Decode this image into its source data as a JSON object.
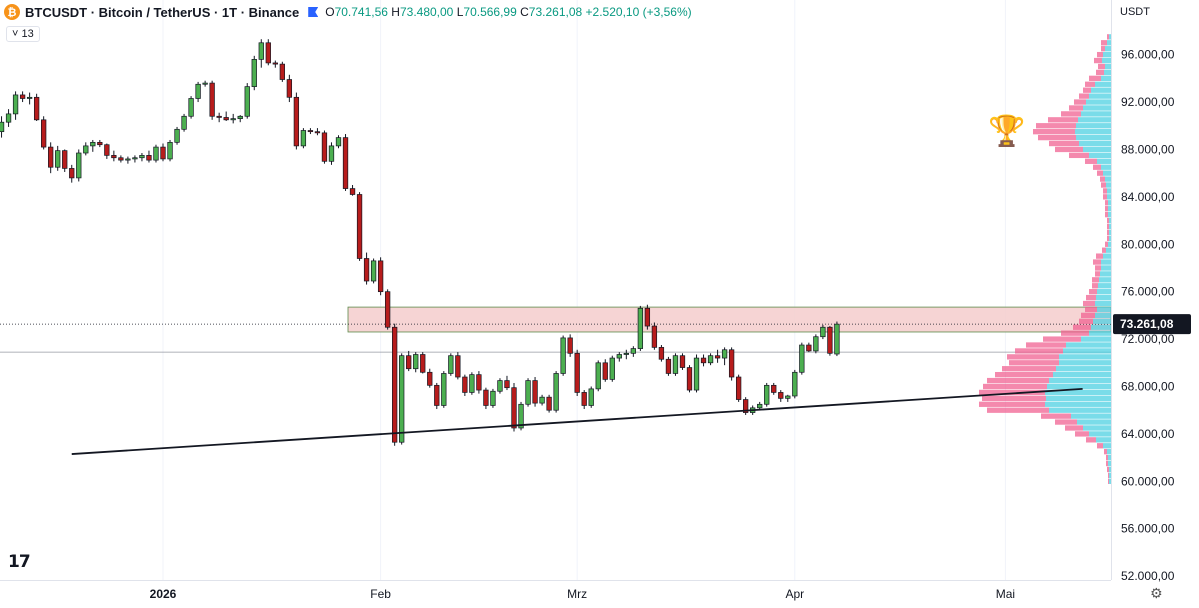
{
  "header": {
    "symbol_text": "BTCUSDT · Bitcoin / TetherUS · 1T · Binance",
    "coin_glyph": "₿",
    "open_label": "O",
    "open": "70.741,56",
    "high_label": "H",
    "high": "73.480,00",
    "low_label": "L",
    "low": "70.566,99",
    "close_label": "C",
    "close": "73.261,08",
    "change": "+2.520,10 (+3,56%)"
  },
  "indicator_toggle": "˅ 13",
  "currency": "USDT",
  "logo_text": "17",
  "settings_glyph": "⚙",
  "trophy_glyph": "🏆",
  "colors": {
    "up": "#26a69a",
    "down": "#ef5350",
    "candle_up": "#4caf50",
    "candle_down": "#b71c1c",
    "zone": "#f4cccc",
    "vp_up": "#4dd0e1",
    "vp_down": "#f06292"
  },
  "chart_data": {
    "type": "candlestick",
    "x_tick_labels": [
      "2026",
      "Feb",
      "Mrz",
      "Apr",
      "Mai"
    ],
    "x_tick_days": [
      0,
      31,
      59,
      90,
      120
    ],
    "y_tick_labels": [
      "96.000,00",
      "92.000,00",
      "88.000,00",
      "84.000,00",
      "80.000,00",
      "76.000,00",
      "72.000,00",
      "68.000,00",
      "64.000,00",
      "60.000,00",
      "56.000,00",
      "52.000,00"
    ],
    "y_tick_values": [
      96000,
      92000,
      88000,
      84000,
      80000,
      76000,
      72000,
      68000,
      64000,
      60000,
      56000,
      52000
    ],
    "ylim": [
      51000,
      98500
    ],
    "last_price_label": "73.261,08",
    "last_price": 73261,
    "candles": [
      [
        89500,
        90800,
        89000,
        90300
      ],
      [
        90300,
        91400,
        89900,
        91000
      ],
      [
        91000,
        92900,
        90500,
        92600
      ],
      [
        92600,
        92900,
        92000,
        92300
      ],
      [
        92300,
        92800,
        91800,
        92400
      ],
      [
        92400,
        92700,
        90400,
        90500
      ],
      [
        90500,
        90800,
        88000,
        88200
      ],
      [
        88200,
        88600,
        86000,
        86500
      ],
      [
        86500,
        88300,
        86200,
        87900
      ],
      [
        87900,
        88000,
        86100,
        86400
      ],
      [
        86400,
        86700,
        85200,
        85600
      ],
      [
        85600,
        88000,
        85300,
        87700
      ],
      [
        87700,
        88600,
        87500,
        88300
      ],
      [
        88300,
        88800,
        87800,
        88600
      ],
      [
        88600,
        88800,
        88200,
        88400
      ],
      [
        88400,
        88500,
        87200,
        87500
      ],
      [
        87500,
        87900,
        87000,
        87300
      ],
      [
        87300,
        87500,
        86900,
        87100
      ],
      [
        87100,
        87400,
        86800,
        87200
      ],
      [
        87200,
        87500,
        86900,
        87300
      ],
      [
        87300,
        87700,
        87000,
        87500
      ],
      [
        87500,
        87900,
        86900,
        87100
      ],
      [
        87100,
        88400,
        86900,
        88200
      ],
      [
        88200,
        88500,
        87000,
        87200
      ],
      [
        87200,
        88800,
        87000,
        88600
      ],
      [
        88600,
        89900,
        88400,
        89700
      ],
      [
        89700,
        91000,
        89500,
        90800
      ],
      [
        90800,
        92500,
        90600,
        92300
      ],
      [
        92300,
        93700,
        92000,
        93500
      ],
      [
        93500,
        93800,
        93300,
        93600
      ],
      [
        93600,
        93800,
        90500,
        90800
      ],
      [
        90800,
        91100,
        90300,
        90700
      ],
      [
        90700,
        91200,
        90400,
        90500
      ],
      [
        90500,
        91000,
        90200,
        90600
      ],
      [
        90600,
        90900,
        90300,
        90800
      ],
      [
        90800,
        93600,
        90600,
        93300
      ],
      [
        93300,
        95900,
        93000,
        95600
      ],
      [
        95600,
        97300,
        94900,
        97000
      ],
      [
        97000,
        97300,
        95100,
        95300
      ],
      [
        95300,
        95500,
        94900,
        95200
      ],
      [
        95200,
        95400,
        93700,
        93900
      ],
      [
        93900,
        94300,
        92000,
        92400
      ],
      [
        92400,
        92800,
        88000,
        88300
      ],
      [
        88300,
        89800,
        88100,
        89600
      ],
      [
        89600,
        89800,
        89300,
        89500
      ],
      [
        89500,
        89800,
        89200,
        89400
      ],
      [
        89400,
        89600,
        86800,
        87000
      ],
      [
        87000,
        88600,
        86700,
        88300
      ],
      [
        88300,
        89200,
        88100,
        89000
      ],
      [
        89000,
        89300,
        84500,
        84700
      ],
      [
        84700,
        85000,
        84100,
        84200
      ],
      [
        84200,
        84400,
        78600,
        78800
      ],
      [
        78800,
        79300,
        76600,
        76900
      ],
      [
        76900,
        78800,
        76700,
        78600
      ],
      [
        78600,
        78900,
        75700,
        76000
      ],
      [
        76000,
        76200,
        72800,
        73000
      ],
      [
        73000,
        73300,
        63000,
        63300
      ],
      [
        63300,
        70800,
        63100,
        70600
      ],
      [
        70600,
        71000,
        69300,
        69500
      ],
      [
        69500,
        70900,
        69200,
        70700
      ],
      [
        70700,
        70900,
        69100,
        69200
      ],
      [
        69200,
        69500,
        67900,
        68100
      ],
      [
        68100,
        68300,
        66100,
        66400
      ],
      [
        66400,
        69300,
        66200,
        69100
      ],
      [
        69100,
        70800,
        68900,
        70600
      ],
      [
        70600,
        70900,
        68600,
        68800
      ],
      [
        68800,
        69000,
        67200,
        67500
      ],
      [
        67500,
        69200,
        67300,
        69000
      ],
      [
        69000,
        69300,
        67400,
        67700
      ],
      [
        67700,
        67900,
        66100,
        66400
      ],
      [
        66400,
        67800,
        66200,
        67600
      ],
      [
        67600,
        68700,
        67400,
        68500
      ],
      [
        68500,
        68900,
        67700,
        67900
      ],
      [
        67900,
        68300,
        64200,
        64500
      ],
      [
        64500,
        66700,
        64300,
        66500
      ],
      [
        66500,
        68700,
        66300,
        68500
      ],
      [
        68500,
        68800,
        66300,
        66600
      ],
      [
        66600,
        67300,
        66400,
        67100
      ],
      [
        67100,
        67300,
        65800,
        66000
      ],
      [
        66000,
        69300,
        65800,
        69100
      ],
      [
        69100,
        72300,
        68900,
        72100
      ],
      [
        72100,
        72400,
        70500,
        70800
      ],
      [
        70800,
        71100,
        67200,
        67500
      ],
      [
        67500,
        67700,
        66100,
        66400
      ],
      [
        66400,
        68000,
        66200,
        67800
      ],
      [
        67800,
        70200,
        67600,
        70000
      ],
      [
        70000,
        70300,
        68400,
        68600
      ],
      [
        68600,
        70600,
        68400,
        70400
      ],
      [
        70400,
        70900,
        70100,
        70700
      ],
      [
        70700,
        71100,
        70300,
        70800
      ],
      [
        70800,
        71400,
        70500,
        71200
      ],
      [
        71200,
        74800,
        71000,
        74600
      ],
      [
        74600,
        74900,
        72800,
        73100
      ],
      [
        73100,
        73400,
        71100,
        71300
      ],
      [
        71300,
        71500,
        70100,
        70300
      ],
      [
        70300,
        70500,
        68900,
        69100
      ],
      [
        69100,
        70800,
        68900,
        70600
      ],
      [
        70600,
        70800,
        69400,
        69600
      ],
      [
        69600,
        69800,
        67500,
        67700
      ],
      [
        67700,
        70700,
        67500,
        70400
      ],
      [
        70400,
        70700,
        69700,
        70000
      ],
      [
        70000,
        70800,
        69800,
        70600
      ],
      [
        70600,
        71100,
        70000,
        70400
      ],
      [
        70400,
        71300,
        69800,
        71100
      ],
      [
        71100,
        71300,
        68500,
        68800
      ],
      [
        68800,
        69000,
        66700,
        66900
      ],
      [
        66900,
        67100,
        65600,
        65800
      ],
      [
        65800,
        66400,
        65600,
        66200
      ],
      [
        66200,
        66700,
        66000,
        66500
      ],
      [
        66500,
        68300,
        66300,
        68100
      ],
      [
        68100,
        68300,
        67300,
        67500
      ],
      [
        67500,
        67700,
        66700,
        67000
      ],
      [
        67000,
        67300,
        66700,
        67200
      ],
      [
        67200,
        69400,
        67000,
        69200
      ],
      [
        69200,
        71700,
        69000,
        71500
      ],
      [
        71500,
        71700,
        70900,
        71000
      ],
      [
        71000,
        72400,
        70800,
        72200
      ],
      [
        72200,
        73200,
        72000,
        73000
      ],
      [
        73000,
        73100,
        70600,
        70800
      ],
      [
        70741,
        73480,
        70567,
        73261
      ]
    ],
    "resistance_zone": [
      72600,
      74700
    ],
    "trendline": [
      [
        -13,
        62300
      ],
      [
        131,
        67800
      ]
    ],
    "horizontal_line": 70900,
    "volume_profile": {
      "levels": [
        97500,
        97000,
        96500,
        96000,
        95500,
        95000,
        94500,
        94000,
        93500,
        93000,
        92500,
        92000,
        91500,
        91000,
        90500,
        90000,
        89500,
        89000,
        88500,
        88000,
        87500,
        87000,
        86500,
        86000,
        85500,
        85000,
        84500,
        84000,
        83500,
        83000,
        82500,
        82000,
        81500,
        81000,
        80500,
        80000,
        79500,
        79000,
        78500,
        78000,
        77500,
        77000,
        76500,
        76000,
        75500,
        75000,
        74500,
        74000,
        73500,
        73000,
        72500,
        72000,
        71500,
        71000,
        70500,
        70000,
        69500,
        69000,
        68500,
        68000,
        67500,
        67000,
        66500,
        66000,
        65500,
        65000,
        64500,
        64000,
        63500,
        63000,
        62500,
        62000,
        61500,
        61000,
        60500,
        60000
      ],
      "up": [
        2,
        4,
        6,
        8,
        9,
        6,
        7,
        10,
        16,
        20,
        22,
        25,
        28,
        30,
        33,
        35,
        36,
        35,
        32,
        28,
        22,
        14,
        10,
        8,
        6,
        5,
        4,
        4,
        3,
        3,
        3,
        2,
        2,
        2,
        2,
        3,
        5,
        8,
        10,
        10,
        11,
        12,
        13,
        14,
        15,
        16,
        14,
        16,
        18,
        20,
        22,
        30,
        45,
        48,
        52,
        52,
        55,
        58,
        62,
        64,
        66,
        65,
        66,
        62,
        40,
        34,
        28,
        22,
        15,
        8,
        4,
        3,
        3,
        2,
        2,
        2
      ],
      "down": [
        2,
        6,
        4,
        6,
        8,
        7,
        8,
        12,
        10,
        8,
        10,
        12,
        14,
        20,
        30,
        40,
        42,
        38,
        30,
        28,
        20,
        12,
        8,
        6,
        5,
        5,
        4,
        4,
        3,
        3,
        3,
        2,
        2,
        2,
        2,
        3,
        4,
        7,
        8,
        6,
        5,
        7,
        6,
        8,
        10,
        12,
        12,
        14,
        14,
        18,
        28,
        38,
        40,
        48,
        52,
        50,
        54,
        58,
        62,
        64,
        66,
        64,
        66,
        62,
        30,
        22,
        18,
        14,
        10,
        6,
        3,
        2,
        2,
        2,
        1,
        1
      ]
    }
  }
}
